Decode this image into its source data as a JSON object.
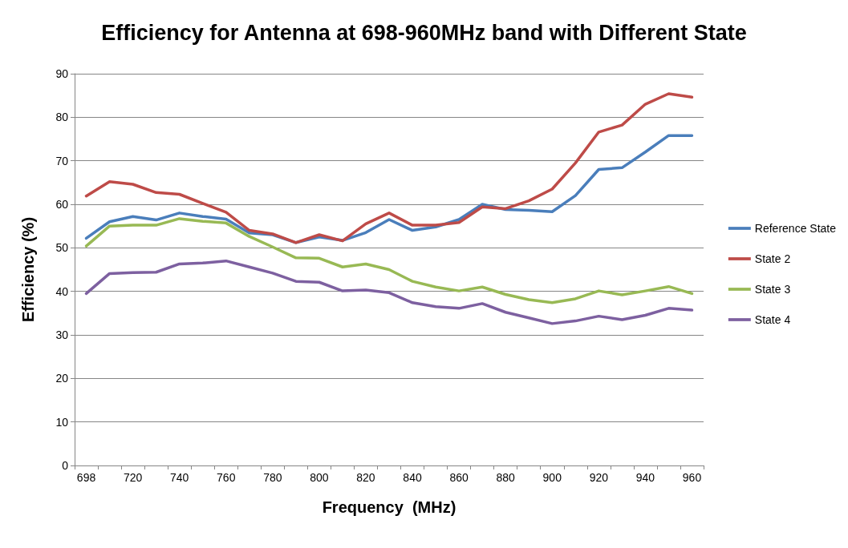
{
  "chart_data": {
    "type": "line",
    "title": "Efficiency for Antenna at 698-960MHz band with Different State",
    "xlabel": "Frequency  (MHz)",
    "ylabel": "Efficiency (%)",
    "categories": [
      "698",
      null,
      "720",
      null,
      "740",
      null,
      "760",
      null,
      "780",
      null,
      "800",
      null,
      "820",
      null,
      "840",
      null,
      "860",
      null,
      "880",
      null,
      "900",
      null,
      "920",
      null,
      "940",
      null,
      "960"
    ],
    "series": [
      {
        "name": "Reference State",
        "color": "#4a7ebb",
        "values": [
          52.2,
          56,
          57.2,
          56.4,
          58,
          57.2,
          56.6,
          53.4,
          53,
          51.2,
          52.5,
          51.7,
          53.5,
          56.5,
          54,
          54.8,
          56.5,
          60,
          58.8,
          58.6,
          58.3,
          62,
          68,
          68.4,
          72,
          75.8,
          75.8
        ]
      },
      {
        "name": "State 2",
        "color": "#be4b48",
        "values": [
          61.9,
          65.2,
          64.6,
          62.7,
          62.3,
          60.2,
          58.2,
          54,
          53.2,
          51.2,
          53,
          51.6,
          55.5,
          58,
          55.2,
          55.2,
          55.8,
          59.4,
          59,
          60.8,
          63.5,
          69.5,
          76.6,
          78.2,
          83,
          85.4,
          84.6
        ]
      },
      {
        "name": "State 3",
        "color": "#98b954",
        "values": [
          50.4,
          55,
          55.2,
          55.2,
          56.7,
          56.1,
          55.7,
          52.6,
          50.2,
          47.7,
          47.6,
          45.6,
          46.3,
          45,
          42.3,
          41,
          40.1,
          41,
          39.3,
          38.1,
          37.4,
          38.3,
          40.1,
          39.2,
          40.1,
          41.1,
          39.5
        ]
      },
      {
        "name": "State 4",
        "color": "#7d60a0",
        "values": [
          39.5,
          44.1,
          44.3,
          44.4,
          46.3,
          46.5,
          47,
          45.6,
          44.2,
          42.3,
          42.1,
          40.1,
          40.3,
          39.7,
          37.4,
          36.5,
          36.1,
          37.2,
          35.2,
          33.9,
          32.6,
          33.2,
          34.3,
          33.5,
          34.5,
          36.1,
          35.7
        ]
      }
    ],
    "ylim": [
      0,
      90
    ],
    "yticks": [
      0,
      10,
      20,
      30,
      40,
      50,
      60,
      70,
      80,
      90
    ],
    "grid": "y",
    "legend": "right",
    "marker": "none",
    "line_style": "solid"
  }
}
